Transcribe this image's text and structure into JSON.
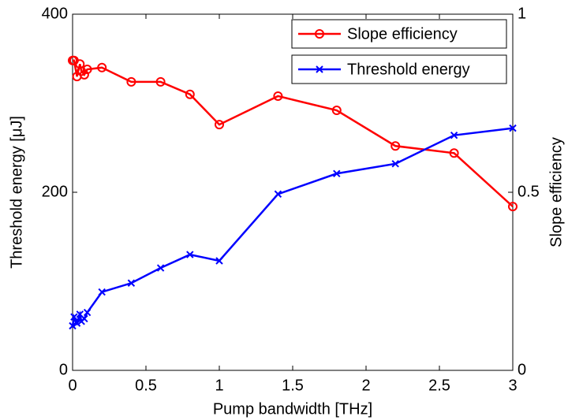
{
  "chart_data": {
    "type": "line",
    "xlabel": "Pump bandwidth [THz]",
    "ylabel": "Threshold energy [μJ]",
    "y2label": "Slope efficiency",
    "x": [
      0,
      0.01,
      0.03,
      0.05,
      0.06,
      0.08,
      0.1,
      0.2,
      0.4,
      0.6,
      0.8,
      1.0,
      1.4,
      1.8,
      2.2,
      2.6,
      3.0
    ],
    "series": [
      {
        "name": "Slope efficiency",
        "color": "#ff0000",
        "marker": "o",
        "axis": "y2",
        "values": [
          0.87,
          0.87,
          0.825,
          0.86,
          0.84,
          0.83,
          0.845,
          0.85,
          0.81,
          0.81,
          0.775,
          0.69,
          0.77,
          0.73,
          0.63,
          0.61,
          0.46
        ]
      },
      {
        "name": "Threshold energy",
        "color": "#0000ff",
        "marker": "x",
        "values": [
          50,
          60,
          53,
          63,
          55,
          58,
          65,
          88,
          98,
          115,
          130,
          123,
          198,
          221,
          232,
          264,
          272
        ]
      }
    ],
    "xlim": [
      0,
      3
    ],
    "xticks": [
      0,
      0.5,
      1,
      1.5,
      2,
      2.5,
      3
    ],
    "ylim": [
      0,
      400
    ],
    "yticks": [
      0,
      200,
      400
    ],
    "y2lim": [
      0,
      1
    ],
    "y2ticks": [
      0,
      0.5,
      1
    ],
    "legend": "upper right",
    "grid": false
  }
}
